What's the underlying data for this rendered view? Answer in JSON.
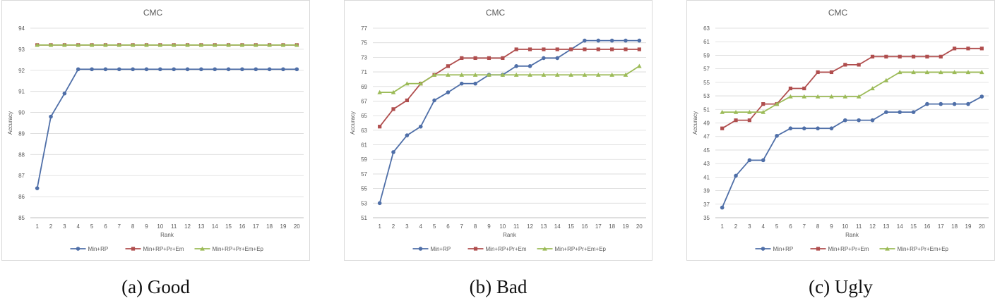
{
  "chart_data": [
    {
      "type": "line",
      "title": "CMC",
      "xlabel": "Rank",
      "ylabel": "Accuracy",
      "caption": "(a) Good",
      "ylim": [
        85,
        94
      ],
      "yticks": [
        85,
        86,
        87,
        88,
        89,
        90,
        91,
        92,
        93,
        94
      ],
      "x": [
        1,
        2,
        3,
        4,
        5,
        6,
        7,
        8,
        9,
        10,
        11,
        12,
        13,
        14,
        15,
        16,
        17,
        18,
        19,
        20
      ],
      "legend_position": "bottom",
      "grid": true,
      "series": [
        {
          "name": "Min+RP",
          "color": "#4f6fa8",
          "marker": "circle",
          "values": [
            86.4,
            89.8,
            90.9,
            92.05,
            92.05,
            92.05,
            92.05,
            92.05,
            92.05,
            92.05,
            92.05,
            92.05,
            92.05,
            92.05,
            92.05,
            92.05,
            92.05,
            92.05,
            92.05,
            92.05
          ]
        },
        {
          "name": "Min+RP+Pr+Em",
          "color": "#b04e4e",
          "marker": "square",
          "values": [
            93.2,
            93.2,
            93.2,
            93.2,
            93.2,
            93.2,
            93.2,
            93.2,
            93.2,
            93.2,
            93.2,
            93.2,
            93.2,
            93.2,
            93.2,
            93.2,
            93.2,
            93.2,
            93.2,
            93.2
          ]
        },
        {
          "name": "Min+RP+Pr+Em+Ep",
          "color": "#9cbb58",
          "marker": "triangle",
          "values": [
            93.2,
            93.2,
            93.2,
            93.2,
            93.2,
            93.2,
            93.2,
            93.2,
            93.2,
            93.2,
            93.2,
            93.2,
            93.2,
            93.2,
            93.2,
            93.2,
            93.2,
            93.2,
            93.2,
            93.2
          ]
        }
      ]
    },
    {
      "type": "line",
      "title": "CMC",
      "xlabel": "Rank",
      "ylabel": "Accuracy",
      "caption": "(b) Bad",
      "ylim": [
        51,
        77
      ],
      "yticks": [
        51,
        53,
        55,
        57,
        59,
        61,
        63,
        65,
        67,
        69,
        71,
        73,
        75,
        77
      ],
      "x": [
        1,
        2,
        3,
        4,
        5,
        6,
        7,
        8,
        9,
        10,
        11,
        12,
        13,
        14,
        15,
        16,
        17,
        18,
        19,
        20
      ],
      "legend_position": "bottom",
      "grid": true,
      "series": [
        {
          "name": "Min+RP",
          "color": "#4f6fa8",
          "marker": "circle",
          "values": [
            53.0,
            60.0,
            62.3,
            63.5,
            67.1,
            68.2,
            69.4,
            69.4,
            70.6,
            70.6,
            71.8,
            71.8,
            72.9,
            72.9,
            74.1,
            75.3,
            75.3,
            75.3,
            75.3,
            75.3
          ]
        },
        {
          "name": "Min+RP+Pr+Em",
          "color": "#b04e4e",
          "marker": "square",
          "values": [
            63.5,
            65.9,
            67.1,
            69.4,
            70.6,
            71.8,
            72.9,
            72.9,
            72.9,
            72.9,
            74.1,
            74.1,
            74.1,
            74.1,
            74.1,
            74.1,
            74.1,
            74.1,
            74.1,
            74.1
          ]
        },
        {
          "name": "Min+RP+Pr+Em+Ep",
          "color": "#9cbb58",
          "marker": "triangle",
          "values": [
            68.2,
            68.2,
            69.4,
            69.4,
            70.6,
            70.6,
            70.6,
            70.6,
            70.6,
            70.6,
            70.6,
            70.6,
            70.6,
            70.6,
            70.6,
            70.6,
            70.6,
            70.6,
            70.6,
            71.8
          ]
        }
      ]
    },
    {
      "type": "line",
      "title": "CMC",
      "xlabel": "Rank",
      "ylabel": "Accuracy",
      "caption": "(c) Ugly",
      "ylim": [
        35,
        63
      ],
      "yticks": [
        35,
        37,
        39,
        41,
        43,
        45,
        47,
        49,
        51,
        53,
        55,
        57,
        59,
        61,
        63
      ],
      "x": [
        1,
        2,
        3,
        4,
        5,
        6,
        7,
        8,
        9,
        10,
        11,
        12,
        13,
        14,
        15,
        16,
        17,
        18,
        19,
        20
      ],
      "legend_position": "bottom",
      "grid": true,
      "series": [
        {
          "name": "Min+RP",
          "color": "#4f6fa8",
          "marker": "circle",
          "values": [
            36.5,
            41.2,
            43.5,
            43.5,
            47.1,
            48.2,
            48.2,
            48.2,
            48.2,
            49.4,
            49.4,
            49.4,
            50.6,
            50.6,
            50.6,
            51.8,
            51.8,
            51.8,
            51.8,
            52.9
          ]
        },
        {
          "name": "Min+RP+Pr+Em",
          "color": "#b04e4e",
          "marker": "square",
          "values": [
            48.2,
            49.4,
            49.4,
            51.8,
            51.8,
            54.1,
            54.1,
            56.5,
            56.5,
            57.6,
            57.6,
            58.8,
            58.8,
            58.8,
            58.8,
            58.8,
            58.8,
            60.0,
            60.0,
            60.0
          ]
        },
        {
          "name": "Min+RP+Pr+Em+Ep",
          "color": "#9cbb58",
          "marker": "triangle",
          "values": [
            50.6,
            50.6,
            50.6,
            50.6,
            51.8,
            52.9,
            52.9,
            52.9,
            52.9,
            52.9,
            52.9,
            54.1,
            55.3,
            56.5,
            56.5,
            56.5,
            56.5,
            56.5,
            56.5,
            56.5
          ]
        }
      ]
    }
  ]
}
